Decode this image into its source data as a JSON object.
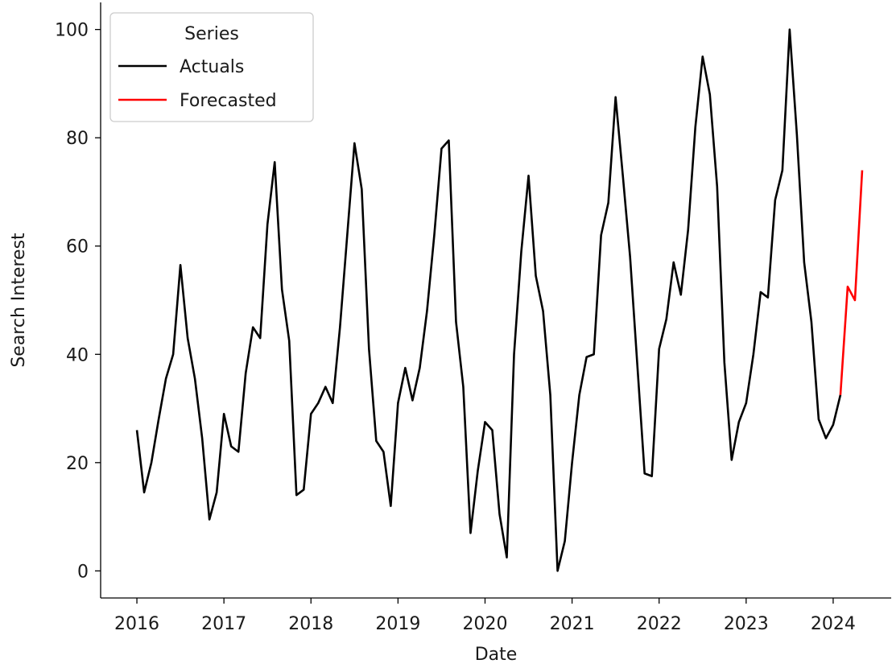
{
  "chart_data": {
    "type": "line",
    "title": "",
    "xlabel": "Date",
    "ylabel": "Search Interest",
    "x_ticks": [
      "2016",
      "2017",
      "2018",
      "2019",
      "2020",
      "2021",
      "2022",
      "2023",
      "2024"
    ],
    "y_ticks": [
      0,
      20,
      40,
      60,
      80,
      100
    ],
    "xlim": [
      "2015-08",
      "2024-09"
    ],
    "ylim": [
      -5,
      105
    ],
    "grid": false,
    "legend": {
      "title": "Series",
      "position": "top-left"
    },
    "series": [
      {
        "name": "Actuals",
        "color": "#000000",
        "points": [
          [
            "2016-01",
            26
          ],
          [
            "2016-02",
            14.5
          ],
          [
            "2016-03",
            20
          ],
          [
            "2016-04",
            28
          ],
          [
            "2016-05",
            35.5
          ],
          [
            "2016-06",
            40
          ],
          [
            "2016-07",
            56.5
          ],
          [
            "2016-08",
            43
          ],
          [
            "2016-09",
            35.5
          ],
          [
            "2016-10",
            24.5
          ],
          [
            "2016-11",
            9.5
          ],
          [
            "2016-12",
            14.5
          ],
          [
            "2017-01",
            29
          ],
          [
            "2017-02",
            23
          ],
          [
            "2017-03",
            22
          ],
          [
            "2017-04",
            36.5
          ],
          [
            "2017-05",
            45
          ],
          [
            "2017-06",
            43
          ],
          [
            "2017-07",
            64
          ],
          [
            "2017-08",
            75.5
          ],
          [
            "2017-09",
            52
          ],
          [
            "2017-10",
            42.5
          ],
          [
            "2017-11",
            14
          ],
          [
            "2017-12",
            15
          ],
          [
            "2018-01",
            29
          ],
          [
            "2018-02",
            31
          ],
          [
            "2018-03",
            34
          ],
          [
            "2018-04",
            31
          ],
          [
            "2018-05",
            45
          ],
          [
            "2018-06",
            62
          ],
          [
            "2018-07",
            79
          ],
          [
            "2018-08",
            70.5
          ],
          [
            "2018-09",
            41
          ],
          [
            "2018-10",
            24
          ],
          [
            "2018-11",
            22
          ],
          [
            "2018-12",
            12
          ],
          [
            "2019-01",
            31
          ],
          [
            "2019-02",
            37.5
          ],
          [
            "2019-03",
            31.5
          ],
          [
            "2019-04",
            37.5
          ],
          [
            "2019-05",
            48
          ],
          [
            "2019-06",
            62
          ],
          [
            "2019-07",
            78
          ],
          [
            "2019-08",
            79.5
          ],
          [
            "2019-09",
            46
          ],
          [
            "2019-10",
            34
          ],
          [
            "2019-11",
            7
          ],
          [
            "2019-12",
            18.5
          ],
          [
            "2020-01",
            27.5
          ],
          [
            "2020-02",
            26
          ],
          [
            "2020-03",
            10.5
          ],
          [
            "2020-04",
            2.5
          ],
          [
            "2020-05",
            40
          ],
          [
            "2020-06",
            59
          ],
          [
            "2020-07",
            73
          ],
          [
            "2020-08",
            54.5
          ],
          [
            "2020-09",
            48
          ],
          [
            "2020-10",
            32.5
          ],
          [
            "2020-11",
            0
          ],
          [
            "2020-12",
            5.5
          ],
          [
            "2021-01",
            20
          ],
          [
            "2021-02",
            32.5
          ],
          [
            "2021-03",
            39.5
          ],
          [
            "2021-04",
            40
          ],
          [
            "2021-05",
            62
          ],
          [
            "2021-06",
            68
          ],
          [
            "2021-07",
            87.5
          ],
          [
            "2021-08",
            73
          ],
          [
            "2021-09",
            58
          ],
          [
            "2021-10",
            38
          ],
          [
            "2021-11",
            18
          ],
          [
            "2021-12",
            17.5
          ],
          [
            "2022-01",
            41
          ],
          [
            "2022-02",
            46.5
          ],
          [
            "2022-03",
            57
          ],
          [
            "2022-04",
            51
          ],
          [
            "2022-05",
            63
          ],
          [
            "2022-06",
            82
          ],
          [
            "2022-07",
            95
          ],
          [
            "2022-08",
            88
          ],
          [
            "2022-09",
            71
          ],
          [
            "2022-10",
            38.5
          ],
          [
            "2022-11",
            20.5
          ],
          [
            "2022-12",
            27.5
          ],
          [
            "2023-01",
            31
          ],
          [
            "2023-02",
            40
          ],
          [
            "2023-03",
            51.5
          ],
          [
            "2023-04",
            50.5
          ],
          [
            "2023-05",
            68.5
          ],
          [
            "2023-06",
            74
          ],
          [
            "2023-07",
            100
          ],
          [
            "2023-08",
            80.5
          ],
          [
            "2023-09",
            57
          ],
          [
            "2023-10",
            46
          ],
          [
            "2023-11",
            28
          ],
          [
            "2023-12",
            24.5
          ],
          [
            "2024-01",
            27
          ],
          [
            "2024-02",
            32.5
          ]
        ]
      },
      {
        "name": "Forecasted",
        "color": "#ff0000",
        "points": [
          [
            "2024-02",
            32.5
          ],
          [
            "2024-03",
            52.5
          ],
          [
            "2024-04",
            50
          ],
          [
            "2024-05",
            74
          ]
        ]
      }
    ]
  }
}
